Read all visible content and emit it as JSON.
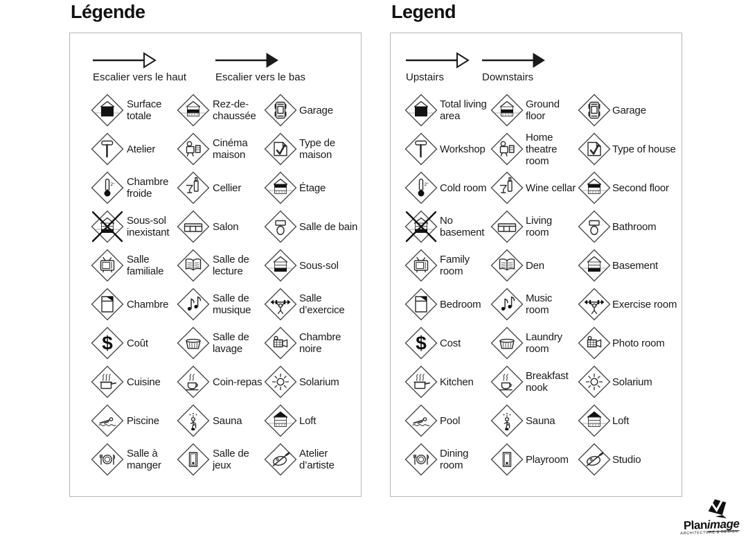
{
  "panels": [
    {
      "title": "Légende",
      "arrows": [
        {
          "icon": "stairs-up-arrow-icon",
          "style": "open",
          "label": "Escalier vers le haut"
        },
        {
          "icon": "stairs-down-arrow-icon",
          "style": "filled",
          "label": "Escalier vers le bas"
        }
      ],
      "items": [
        {
          "icon": "total-living-area-icon",
          "label": "Surface totale"
        },
        {
          "icon": "ground-floor-icon",
          "label": "Rez-de-chaussée"
        },
        {
          "icon": "garage-icon",
          "label": "Garage"
        },
        {
          "icon": "workshop-icon",
          "label": "Atelier"
        },
        {
          "icon": "home-theatre-icon",
          "label": "Cinéma maison"
        },
        {
          "icon": "type-of-house-icon",
          "label": "Type de maison"
        },
        {
          "icon": "cold-room-icon",
          "label": "Chambre froide"
        },
        {
          "icon": "wine-cellar-icon",
          "label": "Cellier"
        },
        {
          "icon": "second-floor-icon",
          "label": "Étage"
        },
        {
          "icon": "no-basement-icon",
          "label": "Sous-sol inexistant"
        },
        {
          "icon": "living-room-icon",
          "label": "Salon"
        },
        {
          "icon": "bathroom-icon",
          "label": "Salle de bain"
        },
        {
          "icon": "family-room-icon",
          "label": "Salle familiale"
        },
        {
          "icon": "den-icon",
          "label": "Salle de lecture"
        },
        {
          "icon": "basement-icon",
          "label": "Sous-sol"
        },
        {
          "icon": "bedroom-icon",
          "label": "Chambre"
        },
        {
          "icon": "music-room-icon",
          "label": "Salle de musique"
        },
        {
          "icon": "exercise-room-icon",
          "label": "Salle d’exercice"
        },
        {
          "icon": "cost-icon",
          "label": "Coût"
        },
        {
          "icon": "laundry-room-icon",
          "label": "Salle de lavage"
        },
        {
          "icon": "photo-room-icon",
          "label": "Chambre noire"
        },
        {
          "icon": "kitchen-icon",
          "label": "Cuisine"
        },
        {
          "icon": "breakfast-nook-icon",
          "label": "Coin-repas"
        },
        {
          "icon": "solarium-icon",
          "label": "Solarium"
        },
        {
          "icon": "pool-icon",
          "label": "Piscine"
        },
        {
          "icon": "sauna-icon",
          "label": "Sauna"
        },
        {
          "icon": "loft-icon",
          "label": "Loft"
        },
        {
          "icon": "dining-room-icon",
          "label": "Salle à manger"
        },
        {
          "icon": "playroom-icon",
          "label": "Salle de jeux"
        },
        {
          "icon": "studio-icon",
          "label": "Atelier d’artiste"
        }
      ]
    },
    {
      "title": "Legend",
      "arrows": [
        {
          "icon": "stairs-up-arrow-icon",
          "style": "open",
          "label": "Upstairs"
        },
        {
          "icon": "stairs-down-arrow-icon",
          "style": "filled",
          "label": "Downstairs"
        }
      ],
      "items": [
        {
          "icon": "total-living-area-icon",
          "label": "Total living area"
        },
        {
          "icon": "ground-floor-icon",
          "label": "Ground floor"
        },
        {
          "icon": "garage-icon",
          "label": "Garage"
        },
        {
          "icon": "workshop-icon",
          "label": "Workshop"
        },
        {
          "icon": "home-theatre-icon",
          "label": "Home theatre room"
        },
        {
          "icon": "type-of-house-icon",
          "label": "Type of house"
        },
        {
          "icon": "cold-room-icon",
          "label": "Cold room"
        },
        {
          "icon": "wine-cellar-icon",
          "label": "Wine cellar"
        },
        {
          "icon": "second-floor-icon",
          "label": "Second floor"
        },
        {
          "icon": "no-basement-icon",
          "label": "No basement"
        },
        {
          "icon": "living-room-icon",
          "label": "Living room"
        },
        {
          "icon": "bathroom-icon",
          "label": "Bathroom"
        },
        {
          "icon": "family-room-icon",
          "label": "Family room"
        },
        {
          "icon": "den-icon",
          "label": "Den"
        },
        {
          "icon": "basement-icon",
          "label": "Basement"
        },
        {
          "icon": "bedroom-icon",
          "label": "Bedroom"
        },
        {
          "icon": "music-room-icon",
          "label": "Music room"
        },
        {
          "icon": "exercise-room-icon",
          "label": "Exercise room"
        },
        {
          "icon": "cost-icon",
          "label": "Cost"
        },
        {
          "icon": "laundry-room-icon",
          "label": "Laundry room"
        },
        {
          "icon": "photo-room-icon",
          "label": "Photo room"
        },
        {
          "icon": "kitchen-icon",
          "label": "Kitchen"
        },
        {
          "icon": "breakfast-nook-icon",
          "label": "Breakfast nook"
        },
        {
          "icon": "solarium-icon",
          "label": "Solarium"
        },
        {
          "icon": "pool-icon",
          "label": "Pool"
        },
        {
          "icon": "sauna-icon",
          "label": "Sauna"
        },
        {
          "icon": "loft-icon",
          "label": "Loft"
        },
        {
          "icon": "dining-room-icon",
          "label": "Dining room"
        },
        {
          "icon": "playroom-icon",
          "label": "Playroom"
        },
        {
          "icon": "studio-icon",
          "label": "Studio"
        }
      ]
    }
  ],
  "icon_text": {
    "cold_room_degree": "2°",
    "cost_symbol": "$"
  },
  "logo": {
    "brand_bold": "Plan",
    "brand_italic": "image",
    "tagline": "ARCHITECTURE & DESIGN"
  }
}
